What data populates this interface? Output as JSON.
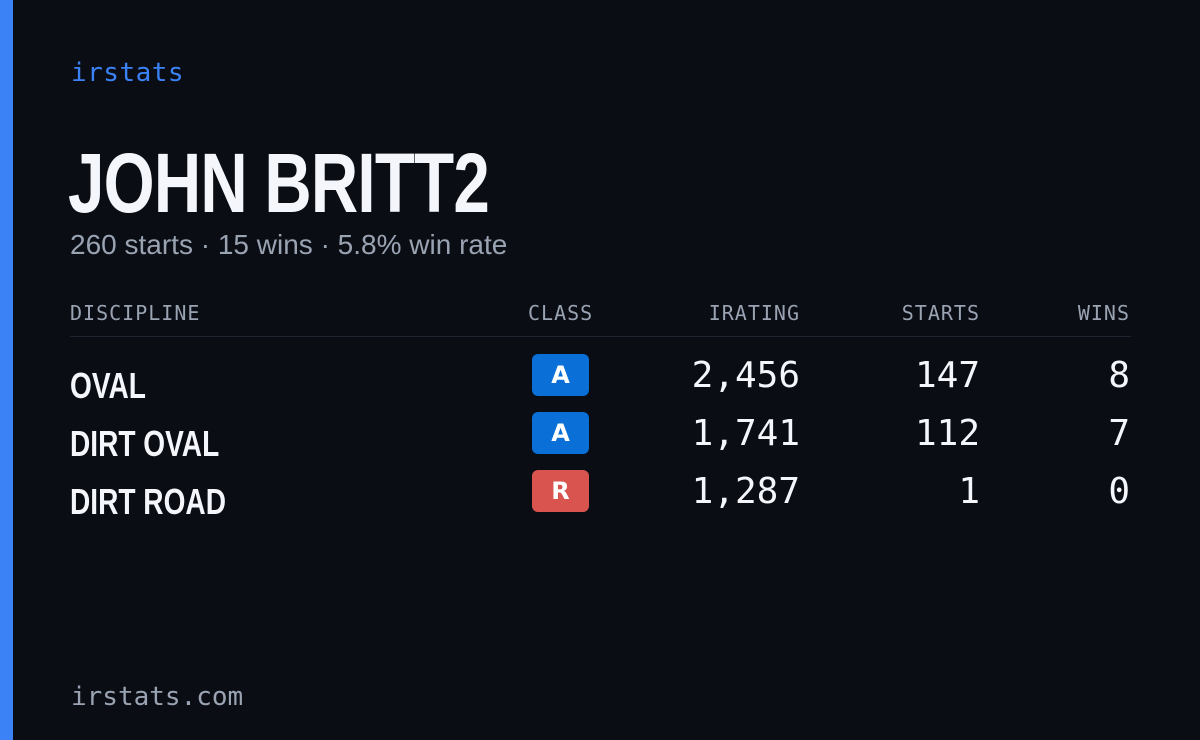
{
  "colors": {
    "background": "#0a0d14",
    "accent": "#3b82f6",
    "text_primary": "#f4f6fb",
    "text_secondary": "#9aa3b2"
  },
  "brand": "irstats",
  "driver": {
    "name": "JOHN BRITT2",
    "summary": {
      "starts": "260 starts",
      "wins": "15 wins",
      "win_rate": "5.8% win rate",
      "separator": "·"
    }
  },
  "table": {
    "headers": {
      "discipline": "DISCIPLINE",
      "class": "CLASS",
      "irating": "IRATING",
      "starts": "STARTS",
      "wins": "WINS"
    },
    "rows": [
      {
        "discipline": "OVAL",
        "class": "A",
        "class_color": "#0a6fd6",
        "irating": "2,456",
        "starts": "147",
        "wins": "8"
      },
      {
        "discipline": "DIRT OVAL",
        "class": "A",
        "class_color": "#0a6fd6",
        "irating": "1,741",
        "starts": "112",
        "wins": "7"
      },
      {
        "discipline": "DIRT ROAD",
        "class": "R",
        "class_color": "#d9534f",
        "irating": "1,287",
        "starts": "1",
        "wins": "0"
      }
    ]
  },
  "footer": "irstats.com"
}
